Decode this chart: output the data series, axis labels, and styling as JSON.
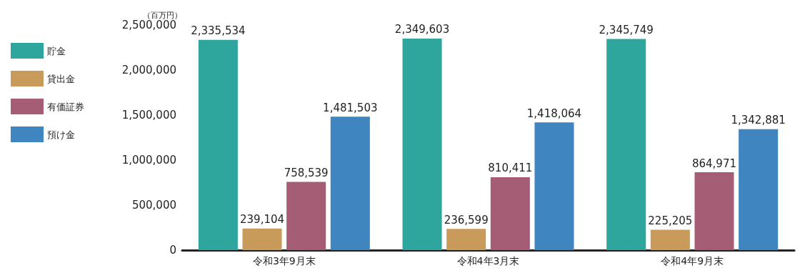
{
  "chart_data": {
    "type": "bar",
    "ylabel": "（百万円）",
    "categories": [
      "令和3年9月末",
      "令和4年3月末",
      "令和4年9月末"
    ],
    "series": [
      {
        "name": "貯金",
        "color": "#2ea59d",
        "values": [
          2335534,
          2349603,
          2345749
        ],
        "value_labels": [
          "2,335,534",
          "2,349,603",
          "2,345,749"
        ]
      },
      {
        "name": "貸出金",
        "color": "#c89b5a",
        "values": [
          239104,
          236599,
          225205
        ],
        "value_labels": [
          "239,104",
          "236,599",
          "225,205"
        ]
      },
      {
        "name": "有価証券",
        "color": "#a45d75",
        "values": [
          758539,
          810411,
          864971
        ],
        "value_labels": [
          "758,539",
          "810,411",
          "864,971"
        ]
      },
      {
        "name": "預け金",
        "color": "#3f85bf",
        "values": [
          1481503,
          1418064,
          1342881
        ],
        "value_labels": [
          "1,481,503",
          "1,418,064",
          "1,342,881"
        ]
      }
    ],
    "ylim": [
      0,
      2500000
    ],
    "yticks": [
      0,
      {
        "value": 500000,
        "label": "500,000"
      },
      {
        "value": 1000000,
        "label": "1,000,000"
      },
      {
        "value": 1500000,
        "label": "1,500,000"
      },
      {
        "value": 2000000,
        "label": "2,000,000"
      },
      {
        "value": 2500000,
        "label": "2,500,000"
      }
    ],
    "grid": false,
    "legend": "left"
  }
}
